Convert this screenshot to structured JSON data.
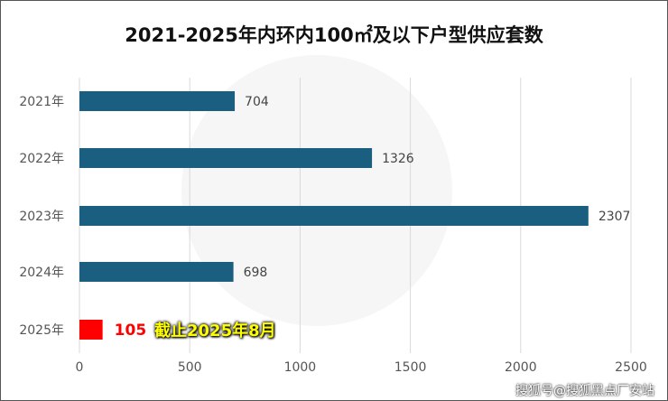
{
  "chart_data": {
    "type": "bar",
    "orientation": "horizontal",
    "title": "2021-2025年内环内100㎡及以下户型供应套数",
    "categories": [
      "2021年",
      "2022年",
      "2023年",
      "2024年",
      "2025年"
    ],
    "values": [
      704,
      1326,
      2307,
      698,
      105
    ],
    "xlim": [
      0,
      2500
    ],
    "xticks": [
      0,
      500,
      1000,
      1500,
      2000,
      2500
    ],
    "grid": true,
    "colors": {
      "bar": "#1b5f80",
      "highlight": "#ff0000",
      "grid": "#d9d9d9"
    },
    "highlight_index": 4,
    "annotation": "截止2025年8月"
  },
  "credit": "搜狐号@搜狐黑点厂安站"
}
